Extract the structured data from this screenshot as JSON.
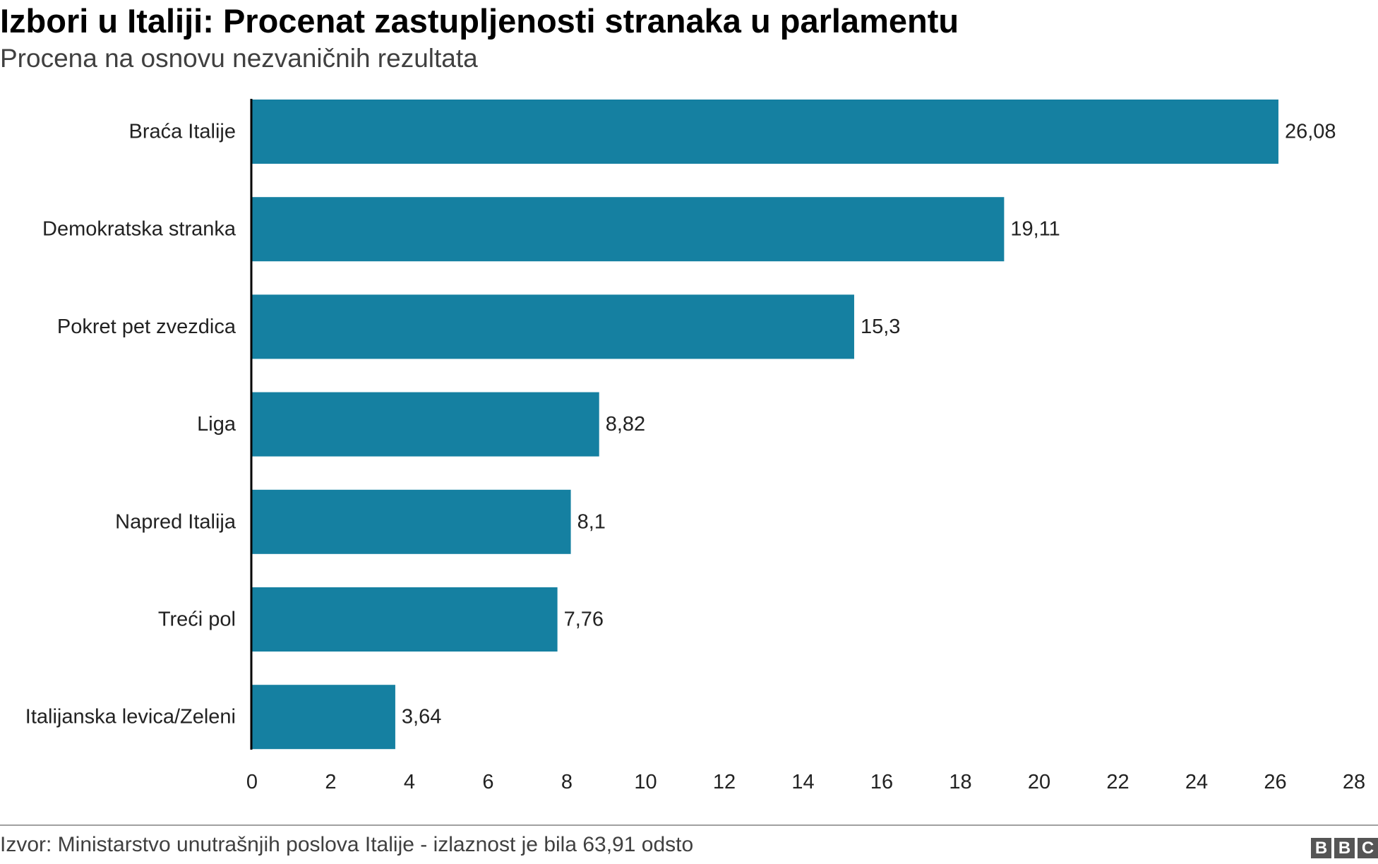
{
  "header": {
    "title": "Izbori u Italiji: Procenat zastupljenosti stranaka u parlamentu",
    "subtitle": "Procena na osnovu nezvaničnih rezultata"
  },
  "footer": {
    "source": "Izvor: Ministarstvo unutrašnjih poslova Italije - izlaznost je bila 63,91 odsto",
    "logo": [
      "B",
      "B",
      "C"
    ]
  },
  "colors": {
    "bar": "#1580a1",
    "axis": "#000000",
    "text": "#222222"
  },
  "chart_data": {
    "type": "bar",
    "orientation": "horizontal",
    "title": "Izbori u Italiji: Procenat zastupljenosti stranaka u parlamentu",
    "subtitle": "Procena na osnovu nezvaničnih rezultata",
    "categories": [
      "Braća Italije",
      "Demokratska stranka",
      "Pokret pet zvezdica",
      "Liga",
      "Napred Italija",
      "Treći pol",
      "Italijanska levica/Zeleni"
    ],
    "values": [
      26.08,
      19.11,
      15.3,
      8.82,
      8.1,
      7.76,
      3.64
    ],
    "value_labels": [
      "26,08",
      "19,11",
      "15,3",
      "8,82",
      "8,1",
      "7,76",
      "3,64"
    ],
    "xlim": [
      0,
      28
    ],
    "x_ticks": [
      0,
      2,
      4,
      6,
      8,
      10,
      12,
      14,
      16,
      18,
      20,
      22,
      24,
      26,
      28
    ],
    "grid": false,
    "legend": "none"
  }
}
